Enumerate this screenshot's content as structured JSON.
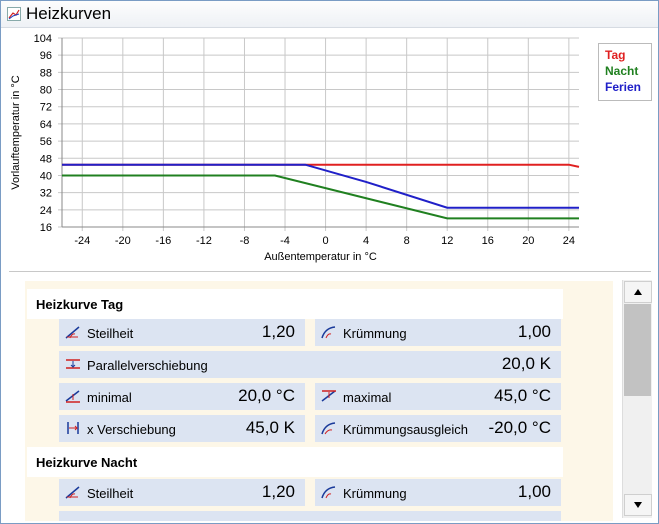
{
  "window": {
    "title": "Heizkurven"
  },
  "chart_data": {
    "type": "line",
    "xlabel": "Außentemperatur in °C",
    "ylabel": "Vorlauftemperatur in °C",
    "xlim": [
      -26,
      25
    ],
    "ylim": [
      16,
      104
    ],
    "xticks": [
      -24,
      -20,
      -16,
      -12,
      -8,
      -4,
      0,
      4,
      8,
      12,
      16,
      20,
      24
    ],
    "yticks": [
      16,
      24,
      32,
      40,
      48,
      56,
      64,
      72,
      80,
      88,
      96,
      104
    ],
    "grid": true,
    "legend_position": "right",
    "series": [
      {
        "name": "Tag",
        "color": "#e02020",
        "x": [
          -26,
          -3,
          24,
          25
        ],
        "y": [
          45,
          45,
          45,
          44
        ]
      },
      {
        "name": "Nacht",
        "color": "#208020",
        "x": [
          -26,
          -5,
          12,
          25
        ],
        "y": [
          40,
          40,
          20,
          20
        ]
      },
      {
        "name": "Ferien",
        "color": "#2020c8",
        "x": [
          -26,
          -2,
          4,
          12,
          25
        ],
        "y": [
          45,
          45,
          37,
          25,
          25
        ]
      }
    ]
  },
  "sections": [
    {
      "title": "Heizkurve Tag",
      "rows": [
        {
          "label": "Steilheit",
          "value": "1,20",
          "icon": "slope-icon"
        },
        {
          "label": "Krümmung",
          "value": "1,00",
          "icon": "curvature-icon"
        },
        {
          "label": "Parallelverschiebung",
          "value": "20,0 K",
          "icon": "parallel-shift-icon"
        },
        {
          "label": "minimal",
          "value": "20,0 °C",
          "icon": "minimum-icon"
        },
        {
          "label": "maximal",
          "value": "45,0 °C",
          "icon": "maximum-icon"
        },
        {
          "label": "x Verschiebung",
          "value": "45,0 K",
          "icon": "x-shift-icon"
        },
        {
          "label": "Krümmungsausgleich",
          "value": "-20,0 °C",
          "icon": "curvature-compensation-icon"
        }
      ]
    },
    {
      "title": "Heizkurve Nacht",
      "rows": [
        {
          "label": "Steilheit",
          "value": "1,20",
          "icon": "slope-icon"
        },
        {
          "label": "Krümmung",
          "value": "1,00",
          "icon": "curvature-icon"
        }
      ]
    }
  ]
}
